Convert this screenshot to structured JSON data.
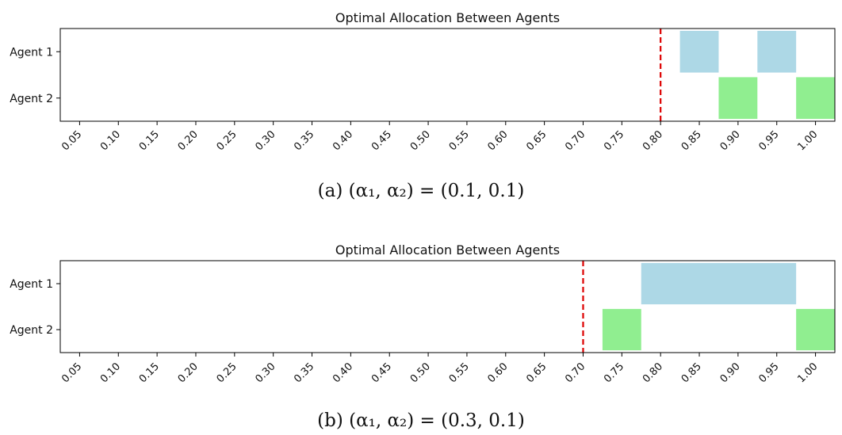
{
  "chart_data": [
    {
      "type": "allocation-timeline",
      "title": "Optimal Allocation Between Agents",
      "caption": "(a) (α₁, α₂) = (0.1, 0.1)",
      "xlim": [
        0.025,
        1.025
      ],
      "xticks": [
        "0.05",
        "0.10",
        "0.15",
        "0.20",
        "0.25",
        "0.30",
        "0.35",
        "0.40",
        "0.45",
        "0.50",
        "0.55",
        "0.60",
        "0.65",
        "0.70",
        "0.75",
        "0.80",
        "0.85",
        "0.90",
        "0.95",
        "1.00"
      ],
      "agents": [
        "Agent 1",
        "Agent 2"
      ],
      "threshold": 0.8,
      "allocations": [
        {
          "agent": "Agent 1",
          "start": 0.825,
          "end": 0.875,
          "color": "#add8e6"
        },
        {
          "agent": "Agent 1",
          "start": 0.925,
          "end": 0.975,
          "color": "#add8e6"
        },
        {
          "agent": "Agent 2",
          "start": 0.875,
          "end": 0.925,
          "color": "#90ee90"
        },
        {
          "agent": "Agent 2",
          "start": 0.975,
          "end": 1.025,
          "color": "#90ee90"
        }
      ]
    },
    {
      "type": "allocation-timeline",
      "title": "Optimal Allocation Between Agents",
      "caption": "(b) (α₁, α₂) = (0.3, 0.1)",
      "xlim": [
        0.025,
        1.025
      ],
      "xticks": [
        "0.05",
        "0.10",
        "0.15",
        "0.20",
        "0.25",
        "0.30",
        "0.35",
        "0.40",
        "0.45",
        "0.50",
        "0.55",
        "0.60",
        "0.65",
        "0.70",
        "0.75",
        "0.80",
        "0.85",
        "0.90",
        "0.95",
        "1.00"
      ],
      "agents": [
        "Agent 1",
        "Agent 2"
      ],
      "threshold": 0.7,
      "allocations": [
        {
          "agent": "Agent 1",
          "start": 0.775,
          "end": 0.975,
          "color": "#add8e6"
        },
        {
          "agent": "Agent 2",
          "start": 0.725,
          "end": 0.775,
          "color": "#90ee90"
        },
        {
          "agent": "Agent 2",
          "start": 0.975,
          "end": 1.025,
          "color": "#90ee90"
        }
      ]
    }
  ],
  "colors": {
    "threshold_line": "#dd0000",
    "axis": "#000000"
  }
}
